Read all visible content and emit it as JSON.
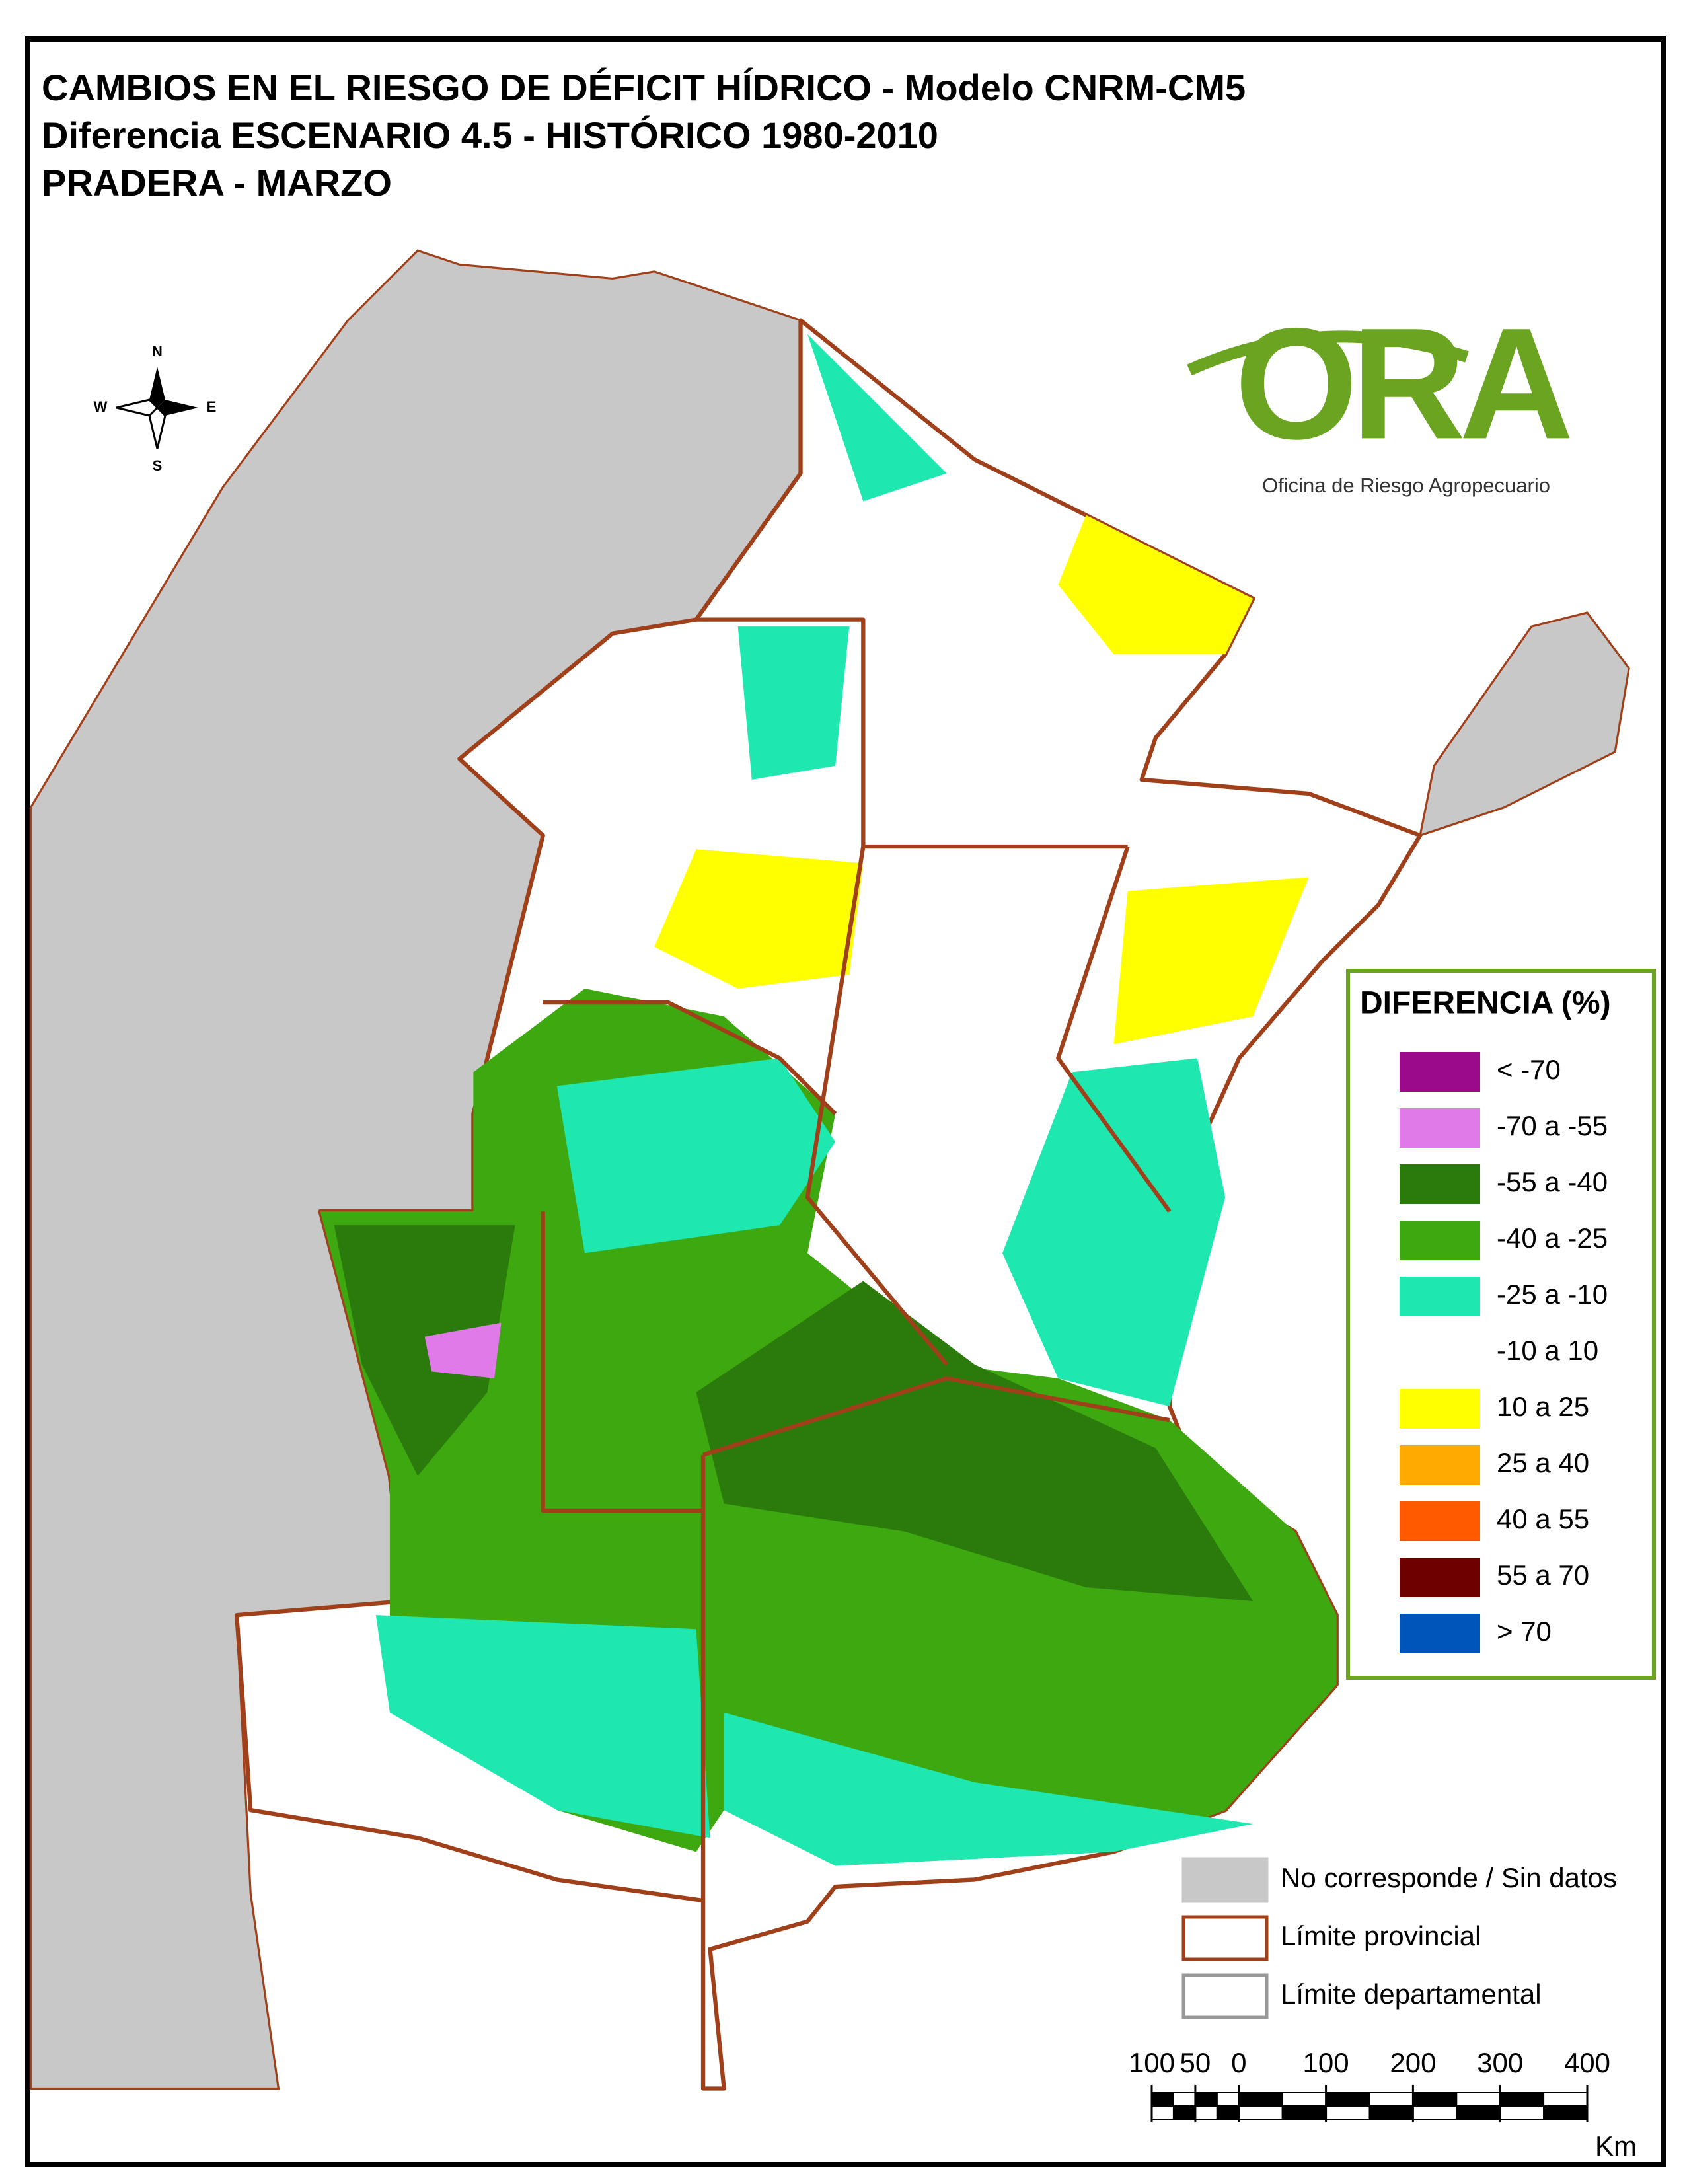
{
  "header": {
    "title_lines": [
      "CAMBIOS EN EL RIESGO DE DÉFICIT HÍDRICO - Modelo CNRM-CM5",
      "Diferencia ESCENARIO 4.5 - HISTÓRICO 1980-2010",
      "PRADERA - MARZO"
    ]
  },
  "compass": {
    "north": "N",
    "south": "S",
    "east": "E",
    "west": "W"
  },
  "logo": {
    "name": "ORA",
    "subtitle": "Oficina de Riesgo Agropecuario"
  },
  "legend": {
    "title": "DIFERENCIA (%)",
    "items": [
      {
        "label": "< -70",
        "color": "#9c0a8c"
      },
      {
        "label": "-70 a -55",
        "color": "#e07ae8"
      },
      {
        "label": "-55 a -40",
        "color": "#2a7a0c"
      },
      {
        "label": "-40 a -25",
        "color": "#3da810"
      },
      {
        "label": "-25 a -10",
        "color": "#1ee8b0"
      },
      {
        "label": "-10 a 10",
        "color": "#ffffff"
      },
      {
        "label": "10 a 25",
        "color": "#ffff00"
      },
      {
        "label": "25 a 40",
        "color": "#ffaa00"
      },
      {
        "label": "40 a 55",
        "color": "#ff5a00"
      },
      {
        "label": "55 a 70",
        "color": "#6e0000"
      },
      {
        "label": "> 70",
        "color": "#0055bb"
      }
    ]
  },
  "map_legend": {
    "items": [
      {
        "label": "No corresponde / Sin datos",
        "fill": "#c8c8c8",
        "stroke": "#c8c8c8"
      },
      {
        "label": "Límite provincial",
        "fill": "#ffffff",
        "stroke": "#a0401a"
      },
      {
        "label": "Límite departamental",
        "fill": "#ffffff",
        "stroke": "#999999"
      }
    ]
  },
  "scale_bar": {
    "ticks": [
      {
        "value": -100,
        "label": "100"
      },
      {
        "value": -50,
        "label": "50"
      },
      0,
      100,
      200,
      300,
      400
    ],
    "unit": "Km"
  }
}
